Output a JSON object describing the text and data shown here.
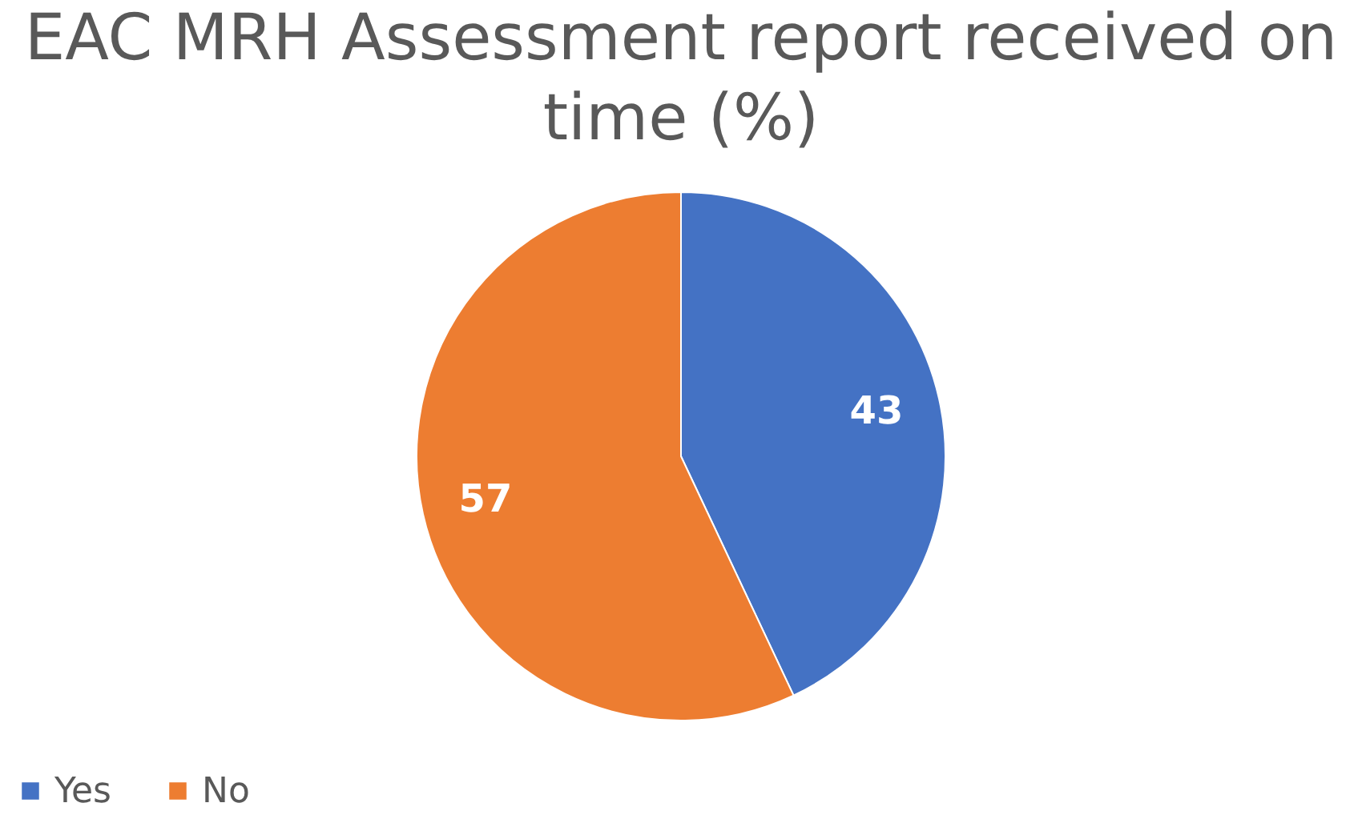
{
  "chart_data": {
    "type": "pie",
    "title": "EAC MRH  Assessment report received on time (%)",
    "categories": [
      "Yes",
      "No"
    ],
    "values": [
      43,
      57
    ],
    "colors": [
      "#4472c4",
      "#ed7d31"
    ],
    "data_labels": true,
    "legend": "bottom"
  }
}
